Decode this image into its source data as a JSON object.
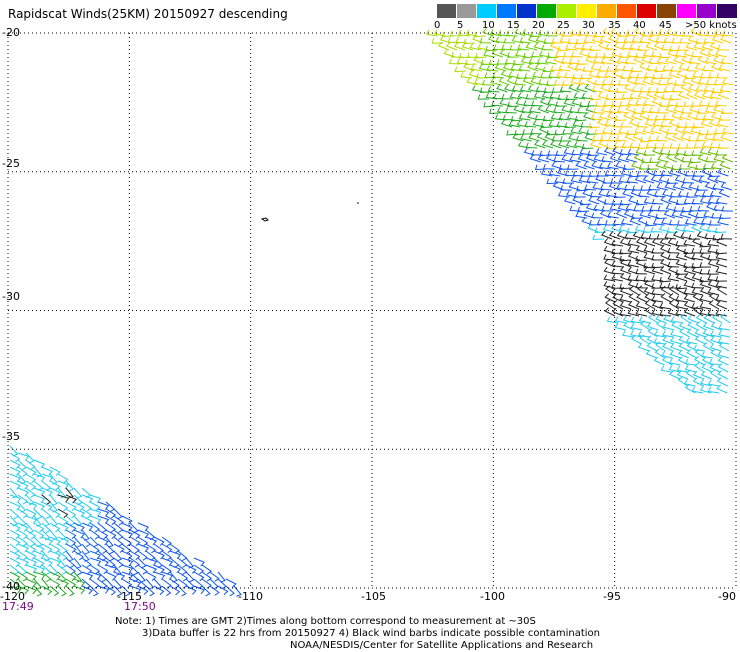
{
  "title": "Rapidscat Winds(25KM) 20150927 descending",
  "legend": {
    "labels": [
      "0",
      "5",
      "10",
      "15",
      "20",
      "25",
      "30",
      "35",
      "40",
      "45",
      ">50 knots"
    ],
    "colors": [
      "#555555",
      "#999999",
      "#00ccff",
      "#0077ff",
      "#0033cc",
      "#00aa00",
      "#aaee00",
      "#ffee00",
      "#ffaa00",
      "#ff5500",
      "#dd0000",
      "#884400",
      "#ff00ff",
      "#9900cc",
      "#330066"
    ]
  },
  "axes": {
    "lat_labels": [
      "-20",
      "-25",
      "-30",
      "-35",
      "-40"
    ],
    "lon_labels": [
      "-120",
      "-115",
      "-110",
      "-105",
      "-100",
      "-95",
      "-90"
    ]
  },
  "times": [
    "17:49",
    "17:50"
  ],
  "notes": {
    "line1": "Note: 1) Times are GMT 2)Times along bottom correspond to measurement at ~30S",
    "line2": "3)Data buffer is 22 hrs from 20150927 4) Black wind barbs indicate possible contamination",
    "line3": "NOAA/NESDIS/Center for Satellite Applications and Research"
  },
  "chart_data": {
    "type": "map",
    "map_kind": "satellite wind barb swaths",
    "lat_range": [
      -40,
      -20
    ],
    "lon_range": [
      -120,
      -90
    ],
    "grid": true,
    "grid_lat_step": 5,
    "grid_lon_step": 5,
    "legend_placement": "top-right",
    "wind_speed_unit": "knots",
    "swaths": [
      {
        "region": "north-east",
        "lat_range": [
          -34,
          -20
        ],
        "lon_range": [
          -103,
          -90
        ],
        "speed_knots_range": [
          5,
          30
        ]
      },
      {
        "region": "south-west",
        "lat_range": [
          -40,
          -35
        ],
        "lon_range": [
          -120,
          -110
        ],
        "speed_knots_range": [
          5,
          20
        ]
      }
    ]
  }
}
